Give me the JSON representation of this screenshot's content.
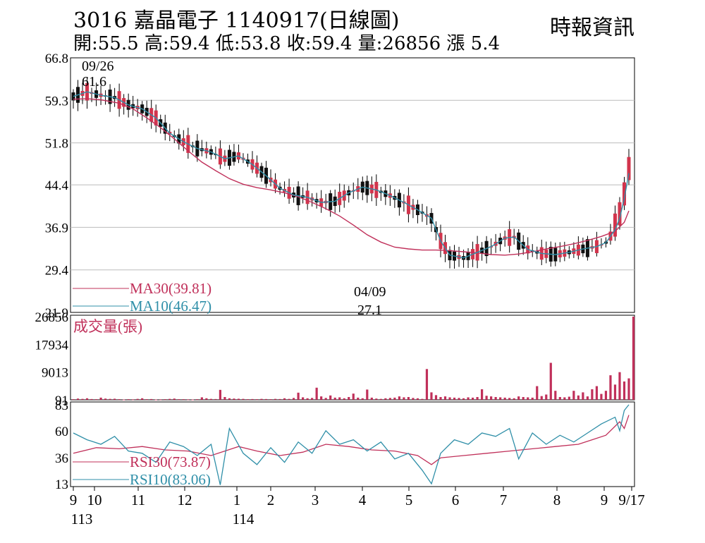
{
  "header": {
    "title": "3016 嘉晶電子 1140917(日線圖)",
    "source": "時報資訊",
    "stats": "開:55.5 高:59.4 低:53.8 收:59.4 量:26856 漲 5.4"
  },
  "chart_data": [
    {
      "type": "candlestick",
      "title": "3016 嘉晶電子 1140917(日線圖)",
      "ylim": [
        21.9,
        66.8
      ],
      "y_ticks": [
        "66.8",
        "59.3",
        "51.8",
        "44.4",
        "36.9",
        "29.4",
        "21.9"
      ],
      "grid": true,
      "annotations": [
        {
          "date": "09/26",
          "value": "61.6",
          "label_date": "09/26",
          "label_value": "61.6"
        },
        {
          "date": "04/09",
          "value": "27.1",
          "label_date": "04/09",
          "label_value": "27.1"
        }
      ],
      "series": [
        {
          "name": "MA30(39.81)",
          "color": "#c0305a",
          "points": [
            [
              0,
              59.5
            ],
            [
              3,
              59.6
            ],
            [
              6,
              59.4
            ],
            [
              10,
              58.8
            ],
            [
              13,
              57.8
            ],
            [
              16,
              56.2
            ],
            [
              19,
              54.5
            ],
            [
              22,
              52.5
            ],
            [
              25,
              50.4
            ],
            [
              28,
              48.4
            ],
            [
              31,
              46.9
            ],
            [
              34,
              45.5
            ],
            [
              37,
              44.5
            ],
            [
              40,
              43.9
            ],
            [
              43,
              43.5
            ],
            [
              46,
              43.0
            ],
            [
              49,
              42.3
            ],
            [
              52,
              41.3
            ],
            [
              55,
              40.2
            ],
            [
              58,
              38.9
            ],
            [
              61,
              37.3
            ],
            [
              64,
              35.6
            ],
            [
              67,
              34.3
            ],
            [
              70,
              33.4
            ],
            [
              73,
              33.1
            ],
            [
              76,
              32.9
            ],
            [
              79,
              32.9
            ],
            [
              82,
              32.8
            ],
            [
              85,
              32.6
            ],
            [
              88,
              32.4
            ],
            [
              91,
              32.1
            ],
            [
              94,
              32.0
            ],
            [
              97,
              32.2
            ],
            [
              100,
              32.6
            ],
            [
              103,
              33.1
            ],
            [
              106,
              33.5
            ],
            [
              109,
              34.0
            ],
            [
              112,
              34.6
            ],
            [
              115,
              35.3
            ],
            [
              118,
              36.2
            ],
            [
              120,
              37.8
            ],
            [
              121,
              39.81
            ]
          ]
        },
        {
          "name": "MA10(46.47)",
          "color": "#2f8fa8",
          "points": [
            [
              0,
              60.0
            ],
            [
              3,
              60.8
            ],
            [
              6,
              60.2
            ],
            [
              9,
              59.8
            ],
            [
              12,
              58.5
            ],
            [
              15,
              57.8
            ],
            [
              18,
              56.2
            ],
            [
              21,
              53.5
            ],
            [
              24,
              52.0
            ],
            [
              27,
              50.8
            ],
            [
              30,
              50.2
            ],
            [
              33,
              49.0
            ],
            [
              36,
              49.5
            ],
            [
              39,
              48.0
            ],
            [
              42,
              46.0
            ],
            [
              45,
              43.8
            ],
            [
              48,
              42.6
            ],
            [
              51,
              42.2
            ],
            [
              54,
              41.3
            ],
            [
              57,
              41.5
            ],
            [
              60,
              43.0
            ],
            [
              63,
              44.0
            ],
            [
              66,
              43.5
            ],
            [
              69,
              42.5
            ],
            [
              72,
              41.3
            ],
            [
              75,
              40.0
            ],
            [
              78,
              38.5
            ],
            [
              80,
              34.5
            ],
            [
              82,
              32.0
            ],
            [
              85,
              31.5
            ],
            [
              88,
              32.5
            ],
            [
              91,
              33.5
            ],
            [
              94,
              35.0
            ],
            [
              96,
              35.2
            ],
            [
              99,
              33.0
            ],
            [
              102,
              32.3
            ],
            [
              105,
              32.1
            ],
            [
              108,
              32.5
            ],
            [
              111,
              33.1
            ],
            [
              114,
              33.5
            ],
            [
              116,
              34.2
            ],
            [
              118,
              36.5
            ],
            [
              119,
              38.5
            ],
            [
              120,
              42.0
            ],
            [
              121,
              46.47
            ]
          ]
        }
      ]
    },
    {
      "type": "bar",
      "title": "成交量(張)",
      "ylim": [
        91,
        26856
      ],
      "y_ticks": [
        "26856",
        "17934",
        "9013",
        "91"
      ],
      "values": [
        300,
        500,
        400,
        600,
        350,
        300,
        800,
        500,
        400,
        450,
        300,
        200,
        300,
        250,
        400,
        600,
        300,
        350,
        200,
        250,
        300,
        400,
        500,
        300,
        300,
        250,
        200,
        300,
        900,
        600,
        400,
        350,
        3300,
        1000,
        600,
        500,
        450,
        400,
        300,
        350,
        300,
        400,
        350,
        300,
        400,
        350,
        600,
        400,
        700,
        2400,
        900,
        600,
        700,
        4000,
        1200,
        700,
        1500,
        800,
        900,
        600,
        1000,
        2100,
        800,
        600,
        3400,
        800,
        500,
        400,
        600,
        700,
        800,
        1200,
        900,
        1000,
        700,
        600,
        400,
        10000,
        2500,
        1600,
        1000,
        1200,
        900,
        800,
        700,
        600,
        900,
        800,
        1000,
        3500,
        1400,
        1200,
        1000,
        900,
        800,
        700,
        600,
        1200,
        1000,
        900,
        800,
        4500,
        1300,
        1800,
        12000,
        3000,
        1000,
        900,
        1100,
        3000,
        1500,
        2500,
        1200,
        3500,
        4500,
        2000,
        3000,
        8000,
        5000,
        9000,
        6000,
        7000,
        26856
      ]
    },
    {
      "type": "line",
      "title": "RSI",
      "ylim": [
        13,
        83
      ],
      "y_ticks": [
        "83",
        "60",
        "36",
        "13"
      ],
      "series": [
        {
          "name": "RSI30(73.87)",
          "color": "#c0305a",
          "points": [
            [
              0,
              40
            ],
            [
              5,
              45
            ],
            [
              10,
              44
            ],
            [
              15,
              46
            ],
            [
              20,
              43
            ],
            [
              25,
              42
            ],
            [
              30,
              38
            ],
            [
              33,
              42
            ],
            [
              36,
              46
            ],
            [
              40,
              42
            ],
            [
              45,
              38
            ],
            [
              50,
              41
            ],
            [
              55,
              48
            ],
            [
              60,
              46
            ],
            [
              65,
              43
            ],
            [
              70,
              42
            ],
            [
              75,
              38
            ],
            [
              78,
              30
            ],
            [
              80,
              36
            ],
            [
              85,
              38
            ],
            [
              90,
              40
            ],
            [
              95,
              42
            ],
            [
              100,
              44
            ],
            [
              105,
              46
            ],
            [
              110,
              48
            ],
            [
              113,
              52
            ],
            [
              116,
              56
            ],
            [
              119,
              68
            ],
            [
              120,
              62
            ],
            [
              121,
              73.87
            ]
          ]
        },
        {
          "name": "RSI10(83.06)",
          "color": "#2f8fa8",
          "points": [
            [
              0,
              58
            ],
            [
              3,
              52
            ],
            [
              6,
              48
            ],
            [
              9,
              55
            ],
            [
              12,
              42
            ],
            [
              15,
              40
            ],
            [
              18,
              32
            ],
            [
              21,
              50
            ],
            [
              24,
              46
            ],
            [
              27,
              38
            ],
            [
              30,
              48
            ],
            [
              32,
              12
            ],
            [
              34,
              62
            ],
            [
              37,
              40
            ],
            [
              40,
              30
            ],
            [
              43,
              45
            ],
            [
              46,
              32
            ],
            [
              49,
              50
            ],
            [
              52,
              40
            ],
            [
              55,
              60
            ],
            [
              58,
              48
            ],
            [
              61,
              52
            ],
            [
              64,
              42
            ],
            [
              67,
              50
            ],
            [
              70,
              35
            ],
            [
              73,
              40
            ],
            [
              76,
              25
            ],
            [
              78,
              13
            ],
            [
              80,
              40
            ],
            [
              83,
              52
            ],
            [
              86,
              48
            ],
            [
              89,
              58
            ],
            [
              92,
              55
            ],
            [
              95,
              62
            ],
            [
              97,
              35
            ],
            [
              100,
              58
            ],
            [
              103,
              48
            ],
            [
              106,
              56
            ],
            [
              109,
              50
            ],
            [
              112,
              58
            ],
            [
              115,
              66
            ],
            [
              118,
              72
            ],
            [
              119,
              60
            ],
            [
              120,
              78
            ],
            [
              121,
              83.06
            ]
          ]
        }
      ]
    }
  ],
  "axis": {
    "month_ticks": [
      "9",
      "10",
      "11",
      "12",
      "1",
      "2",
      "3",
      "4",
      "5",
      "6",
      "7",
      "8",
      "9",
      "9/17"
    ],
    "year_labels": [
      "113",
      "114"
    ]
  }
}
